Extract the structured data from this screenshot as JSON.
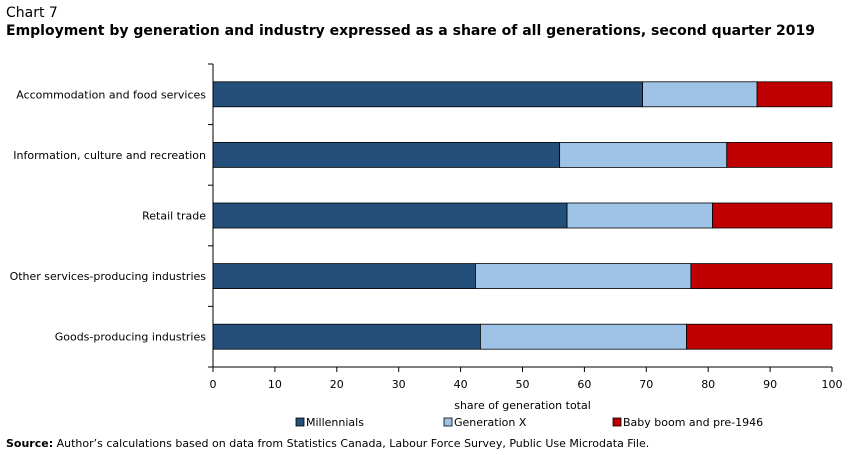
{
  "header": {
    "label": "Chart 7",
    "title": "Employment by generation and industry expressed as a share of all generations, second quarter 2019"
  },
  "source": {
    "prefix": "Source:",
    "text": " Author’s calculations based on data from Statistics Canada, Labour Force Survey, Public Use Microdata File."
  },
  "colors": {
    "millennials": "#234f7a",
    "generation_x": "#9ec3e6",
    "baby_boom": "#c00000"
  },
  "chart_data": {
    "type": "bar",
    "orientation": "horizontal",
    "stacked": true,
    "categories": [
      "Accommodation and food services",
      "Information, culture and recreation",
      "Retail trade",
      "Other services-producing industries",
      "Goods-producing industries"
    ],
    "series": [
      {
        "name": "Millennials",
        "values": [
          69.4,
          56.0,
          57.2,
          42.4,
          43.2
        ]
      },
      {
        "name": "Generation X",
        "values": [
          18.5,
          27.0,
          23.5,
          34.8,
          33.3
        ]
      },
      {
        "name": "Baby boom and pre-1946",
        "values": [
          12.1,
          17.0,
          19.3,
          22.8,
          23.5
        ]
      }
    ],
    "xlabel": "share of generation total",
    "ylabel": "",
    "xlim": [
      0,
      100
    ],
    "xticks": [
      0,
      10,
      20,
      30,
      40,
      50,
      60,
      70,
      80,
      90,
      100
    ],
    "grid": false,
    "legend": "bottom"
  }
}
